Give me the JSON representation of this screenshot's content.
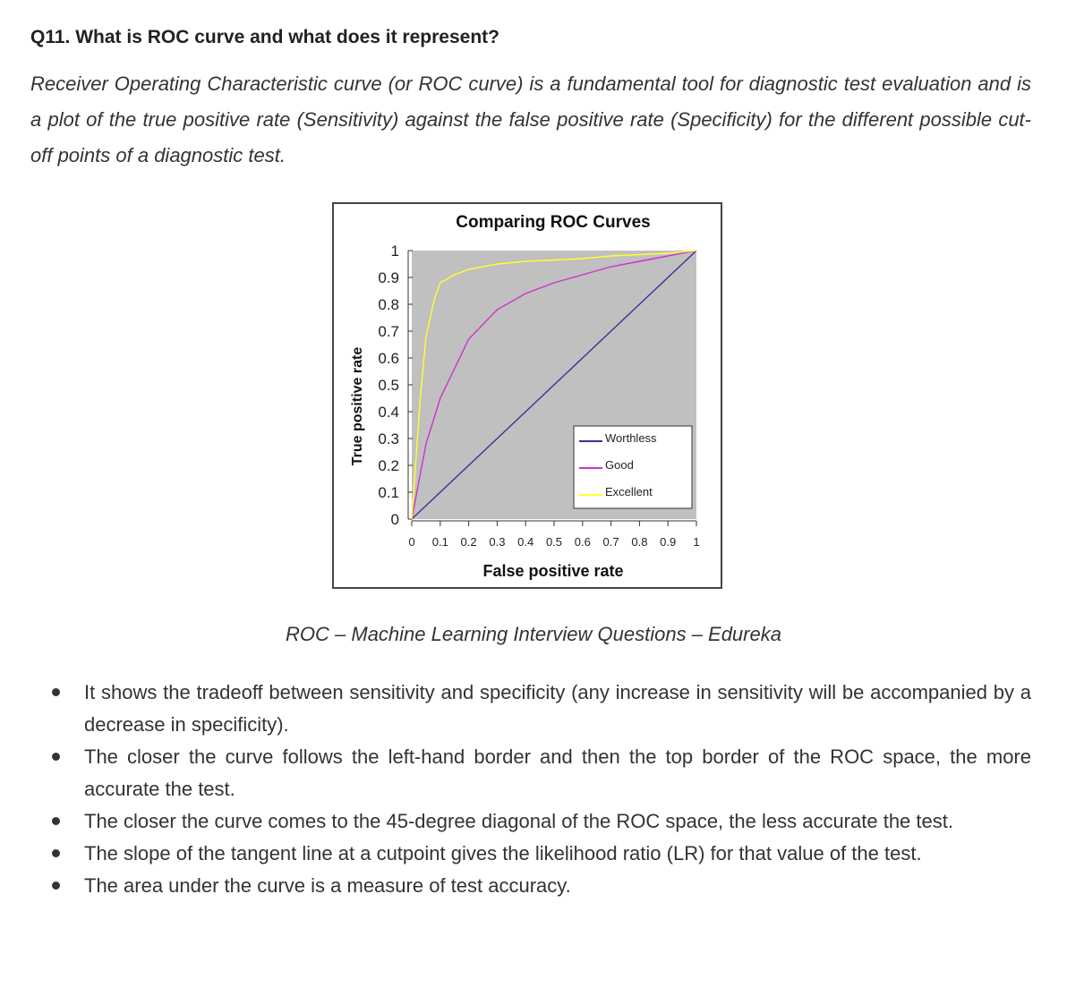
{
  "heading": "Q11. What is ROC curve and what does it represent?",
  "intro": "Receiver Operating Characteristic curve (or ROC curve) is a fundamental tool for diagnostic test evaluation and is a plot of the true positive rate (Sensitivity) against the false positive rate (Specificity) for the different possible cut-off points of a diagnostic test.",
  "caption": "ROC – Machine Learning Interview Questions – Edureka",
  "bullets": [
    "It shows the tradeoff between sensitivity and specificity (any increase in sensitivity will be accompanied by a decrease in specificity).",
    "The closer the curve follows the left-hand border and then the top border of the ROC space, the more accurate the test.",
    "The closer the curve comes to the 45-degree diagonal of the ROC space, the less accurate the test.",
    "The slope of the tangent line at a cutpoint gives the likelihood ratio (LR) for that value of the test.",
    "The area under the curve is a measure of test accuracy."
  ],
  "chart_data": {
    "type": "line",
    "title": "Comparing ROC Curves",
    "xlabel": "False positive rate",
    "ylabel": "True positive rate",
    "xlim": [
      0,
      1
    ],
    "ylim": [
      0,
      1
    ],
    "xticks": [
      "0",
      "0.1",
      "0.2",
      "0.3",
      "0.4",
      "0.5",
      "0.6",
      "0.7",
      "0.8",
      "0.9",
      "1"
    ],
    "yticks": [
      "0",
      "0.1",
      "0.2",
      "0.3",
      "0.4",
      "0.5",
      "0.6",
      "0.7",
      "0.8",
      "0.9",
      "1"
    ],
    "grid": false,
    "plot_background": "#c0c0c0",
    "legend_position": "bottom-right",
    "series": [
      {
        "name": "Worthless",
        "color": "#333399",
        "x": [
          0,
          0.1,
          0.2,
          0.3,
          0.4,
          0.5,
          0.6,
          0.7,
          0.8,
          0.9,
          1
        ],
        "y": [
          0,
          0.1,
          0.2,
          0.3,
          0.4,
          0.5,
          0.6,
          0.7,
          0.8,
          0.9,
          1
        ]
      },
      {
        "name": "Good",
        "color": "#cc33cc",
        "x": [
          0,
          0.05,
          0.1,
          0.2,
          0.3,
          0.4,
          0.5,
          0.6,
          0.7,
          0.8,
          0.9,
          1
        ],
        "y": [
          0,
          0.28,
          0.45,
          0.67,
          0.78,
          0.84,
          0.88,
          0.91,
          0.94,
          0.96,
          0.98,
          1
        ]
      },
      {
        "name": "Excellent",
        "color": "#ffff33",
        "x": [
          0,
          0.03,
          0.05,
          0.08,
          0.1,
          0.15,
          0.2,
          0.3,
          0.4,
          0.5,
          0.6,
          0.7,
          0.8,
          0.9,
          1
        ],
        "y": [
          0,
          0.45,
          0.68,
          0.82,
          0.88,
          0.91,
          0.93,
          0.95,
          0.96,
          0.965,
          0.97,
          0.98,
          0.985,
          0.99,
          1
        ]
      }
    ]
  }
}
